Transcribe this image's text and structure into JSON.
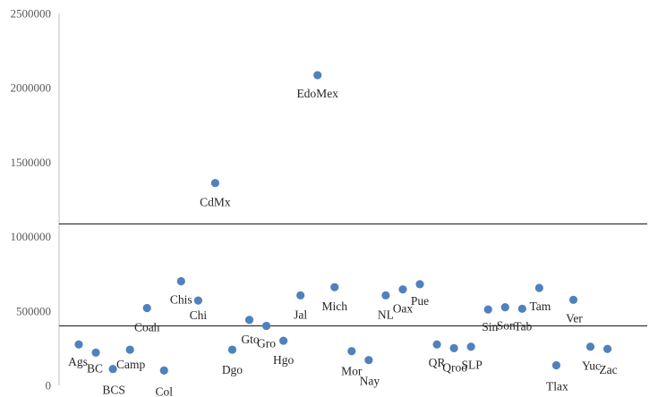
{
  "chart_data": {
    "type": "scatter",
    "ylim": [
      0,
      2500000
    ],
    "y_ticks": [
      "0",
      "500000",
      "1000000",
      "1500000",
      "2000000",
      "2500000"
    ],
    "reference_lines": [
      1085000,
      400000
    ],
    "grid": false,
    "point_color": "#4f81bd",
    "points": [
      {
        "label": "Ags",
        "x": 1,
        "y": 275000
      },
      {
        "label": "BC",
        "x": 2,
        "y": 220000
      },
      {
        "label": "BCS",
        "x": 3,
        "y": 110000
      },
      {
        "label": "Camp",
        "x": 4,
        "y": 240000
      },
      {
        "label": "Coah",
        "x": 5,
        "y": 520000
      },
      {
        "label": "Col",
        "x": 6,
        "y": 100000
      },
      {
        "label": "Chis",
        "x": 7,
        "y": 700000
      },
      {
        "label": "Chi",
        "x": 8,
        "y": 570000
      },
      {
        "label": "CdMx",
        "x": 9,
        "y": 1360000
      },
      {
        "label": "Dgo",
        "x": 10,
        "y": 240000
      },
      {
        "label": "Gto",
        "x": 11,
        "y": 440000
      },
      {
        "label": "Gro",
        "x": 12,
        "y": 400000
      },
      {
        "label": "Hgo",
        "x": 13,
        "y": 300000
      },
      {
        "label": "Jal",
        "x": 14,
        "y": 605000
      },
      {
        "label": "EdoMex",
        "x": 15,
        "y": 2085000
      },
      {
        "label": "Mich",
        "x": 16,
        "y": 660000
      },
      {
        "label": "Mor",
        "x": 17,
        "y": 230000
      },
      {
        "label": "Nay",
        "x": 18,
        "y": 170000
      },
      {
        "label": "NL",
        "x": 19,
        "y": 605000
      },
      {
        "label": "Oax",
        "x": 20,
        "y": 645000
      },
      {
        "label": "Pue",
        "x": 21,
        "y": 680000
      },
      {
        "label": "QR",
        "x": 22,
        "y": 275000
      },
      {
        "label": "Qroo",
        "x": 23,
        "y": 250000
      },
      {
        "label": "SLP",
        "x": 24,
        "y": 260000
      },
      {
        "label": "Sin",
        "x": 25,
        "y": 510000
      },
      {
        "label": "Son",
        "x": 26,
        "y": 525000
      },
      {
        "label": "Tab",
        "x": 27,
        "y": 515000
      },
      {
        "label": "Tam",
        "x": 28,
        "y": 655000
      },
      {
        "label": "Tlax",
        "x": 29,
        "y": 135000
      },
      {
        "label": "Ver",
        "x": 30,
        "y": 575000
      },
      {
        "label": "Yuc",
        "x": 31,
        "y": 260000
      },
      {
        "label": "Zac",
        "x": 32,
        "y": 245000
      }
    ]
  }
}
